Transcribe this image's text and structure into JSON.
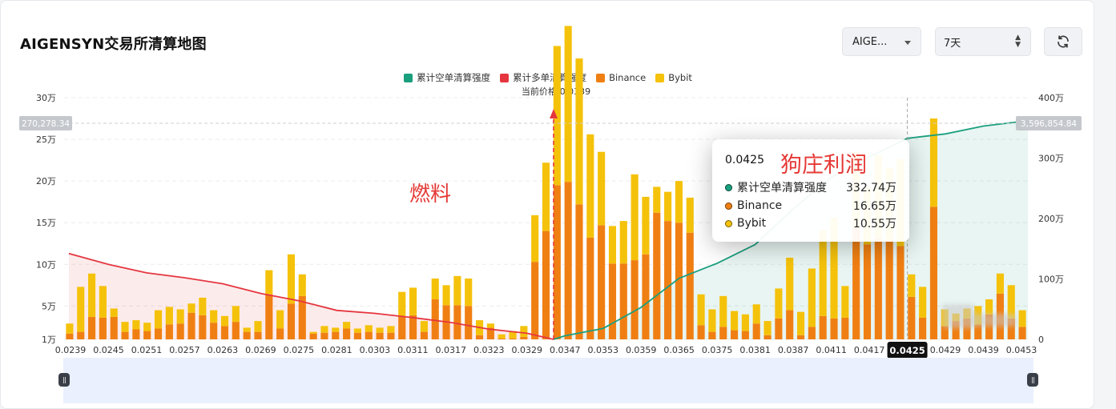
{
  "page": {
    "title": "AIGENSYN交易所清算地图",
    "symbol_select": "AIGE...",
    "period_select": "7天",
    "current_price_label": "当前价格:0.0339",
    "left_ref_value": "270,278.34",
    "right_ref_value": "3,596,854.84",
    "highlight_x_label": "0.0425",
    "annotation_fuel": "燃料",
    "annotation_profit": "狗庄利润"
  },
  "tooltip": {
    "price": "0.0425",
    "rows": [
      {
        "label": "累计空单清算强度",
        "value": "332.74万",
        "color": "#1a9f7e"
      },
      {
        "label": "Binance",
        "value": "16.65万",
        "color": "#f07f13"
      },
      {
        "label": "Bybit",
        "value": "10.55万",
        "color": "#f5c20b"
      }
    ]
  },
  "chart_data": {
    "type": "bar",
    "title": "AIGENSYN交易所清算地图",
    "legend": [
      {
        "name": "累计空单清算强度",
        "color": "#1a9f7e"
      },
      {
        "name": "累计多单清算强度",
        "color": "#e5363f"
      },
      {
        "name": "Binance",
        "color": "#f07f13"
      },
      {
        "name": "Bybit",
        "color": "#f5c20b"
      }
    ],
    "legend_position": "top-center",
    "current_price": 0.0339,
    "x_tick_labels": [
      "0.0239",
      "0.0245",
      "0.0251",
      "0.0257",
      "0.0263",
      "0.0269",
      "0.0275",
      "0.0281",
      "0.0303",
      "0.0311",
      "0.0317",
      "0.0323",
      "0.0329",
      "0.0347",
      "0.0353",
      "0.0359",
      "0.0365",
      "0.0375",
      "0.0381",
      "0.0387",
      "0.0411",
      "0.0417",
      "0.0425",
      "0.0429",
      "0.0439",
      "0.0453"
    ],
    "y_left": {
      "ticks": [
        "1万",
        "5万",
        "10万",
        "15万",
        "20万",
        "25万",
        "30万"
      ],
      "tick_values": [
        10000,
        50000,
        100000,
        150000,
        200000,
        250000,
        300000
      ],
      "range": [
        10000,
        300000
      ]
    },
    "y_right": {
      "ticks": [
        "0",
        "100万",
        "200万",
        "300万",
        "400万"
      ],
      "tick_values": [
        0,
        1000000,
        2000000,
        3000000,
        4000000
      ],
      "range": [
        0,
        4000000
      ]
    },
    "grid": true,
    "binance": [
      17000,
      19000,
      37000,
      36000,
      37000,
      19000,
      22000,
      20000,
      23000,
      28000,
      29000,
      42000,
      39000,
      30000,
      26000,
      31000,
      19000,
      19000,
      64000,
      23000,
      53000,
      62000,
      17000,
      18000,
      19000,
      23000,
      18000,
      19000,
      18000,
      18000,
      38000,
      39000,
      19000,
      58000,
      51000,
      51000,
      50000,
      15000,
      24000,
      11000,
      11000,
      13000,
      103000,
      140000,
      195000,
      199000,
      172000,
      132000,
      147000,
      101000,
      101000,
      105000,
      112000,
      162000,
      152000,
      150000,
      138000,
      27000,
      19000,
      25000,
      21000,
      20000,
      29000,
      15000,
      35000,
      45000,
      15000,
      25000,
      38000,
      35000,
      36000,
      145000,
      124000,
      131000,
      129000,
      122000,
      61000,
      36000,
      169000,
      26000,
      32000,
      35000,
      28000,
      40000,
      65000,
      35000,
      25000
    ],
    "bybit": [
      12000,
      54000,
      52000,
      38000,
      10000,
      12000,
      11000,
      10000,
      22000,
      21000,
      17000,
      11000,
      21000,
      15000,
      12000,
      19000,
      5000,
      13000,
      29000,
      22000,
      59000,
      26000,
      2000,
      8000,
      5000,
      8000,
      5000,
      8000,
      6000,
      8000,
      29000,
      33000,
      13000,
      25000,
      24000,
      35000,
      33000,
      18000,
      5000,
      5000,
      9000,
      13000,
      56000,
      82000,
      167000,
      187000,
      175000,
      124000,
      88000,
      45000,
      51000,
      103000,
      69000,
      31000,
      35000,
      50000,
      42000,
      37000,
      27000,
      37000,
      23000,
      20000,
      23000,
      17000,
      36000,
      63000,
      28000,
      70000,
      103000,
      121000,
      38000,
      90000,
      68000,
      100000,
      87000,
      104000,
      27000,
      37000,
      106000,
      20000,
      9000,
      12000,
      22000,
      18000,
      24000,
      40000,
      20000
    ],
    "cumulative_long": [
      [
        0.0239,
        1420000
      ],
      [
        0.0245,
        1240000
      ],
      [
        0.0251,
        1100000
      ],
      [
        0.0257,
        1020000
      ],
      [
        0.0263,
        920000
      ],
      [
        0.0269,
        760000
      ],
      [
        0.0275,
        640000
      ],
      [
        0.0281,
        480000
      ],
      [
        0.0303,
        430000
      ],
      [
        0.0311,
        360000
      ],
      [
        0.0317,
        280000
      ],
      [
        0.0323,
        170000
      ],
      [
        0.0329,
        100000
      ],
      [
        0.0339,
        0
      ]
    ],
    "cumulative_short": [
      [
        0.0339,
        0
      ],
      [
        0.0347,
        60000
      ],
      [
        0.0353,
        180000
      ],
      [
        0.0359,
        530000
      ],
      [
        0.0365,
        1010000
      ],
      [
        0.0375,
        1260000
      ],
      [
        0.0381,
        1570000
      ],
      [
        0.0387,
        2160000
      ],
      [
        0.0411,
        2680000
      ],
      [
        0.0417,
        3020000
      ],
      [
        0.0425,
        3327400
      ],
      [
        0.0429,
        3400000
      ],
      [
        0.0439,
        3530000
      ],
      [
        0.0453,
        3596854.84
      ]
    ]
  }
}
